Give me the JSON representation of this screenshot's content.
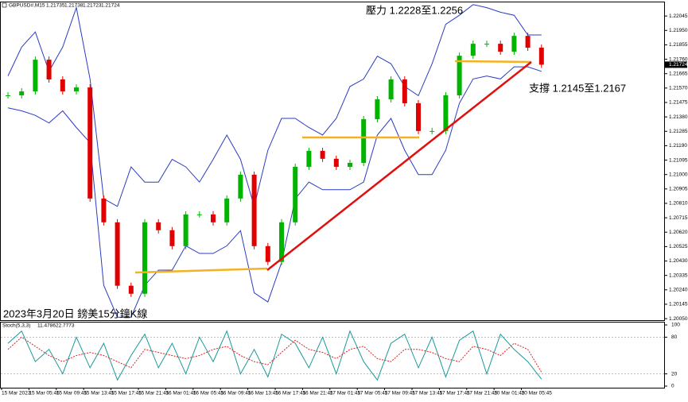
{
  "chart_data": {
    "type": "candlestick",
    "symbol": "GBPUSD#,M15",
    "ohlc": [
      1.21735,
      1.21738,
      1.21723,
      1.21724
    ],
    "annotations": [
      "壓力 1.2228至1.2256",
      "支撐 1.2145至1.2167",
      "2023年3月20日 鎊美15分鐘K線"
    ],
    "categories": [
      "15 Mar 2023",
      null,
      "15 Mar 05:45",
      null,
      "15 Mar 09:45",
      null,
      "15 Mar 13:45",
      null,
      "15 Mar 17:45",
      null,
      "15 Mar 21:45",
      null,
      "16 Mar 01:45",
      null,
      "16 Mar 05:45",
      null,
      "16 Mar 09:45",
      null,
      "16 Mar 13:45",
      null,
      "16 Mar 17:45",
      null,
      "16 Mar 21:45",
      null,
      "17 Mar 01:45",
      null,
      "17 Mar 05:45",
      null,
      "17 Mar 09:45",
      null,
      "17 Mar 13:45",
      null,
      "17 Mar 17:45",
      null,
      "17 Mar 21:45",
      null,
      "20 Mar 01:45",
      null,
      "20 Mar 05:45",
      null
    ],
    "values": [
      1.21522,
      1.21548,
      1.21757,
      1.21627,
      1.21548,
      1.21574,
      1.20842,
      1.20685,
      1.20267,
      1.20214,
      1.20685,
      1.20633,
      1.20528,
      1.20737,
      1.20737,
      1.20685,
      1.20842,
      1.20999,
      1.20528,
      1.20424,
      1.20685,
      1.21051,
      1.21156,
      1.21104,
      1.21051,
      1.21077,
      1.21365,
      1.21496,
      1.21627,
      1.2147,
      1.21287,
      1.21287,
      1.21522,
      1.21783,
      1.21862,
      1.21862,
      1.2181,
      1.21914,
      1.21836,
      1.21724
    ],
    "color_up": "#00b400",
    "color_down": "#e00000",
    "bands": {
      "color": "#2b3cc4",
      "upper": [
        1.2165,
        1.2184,
        1.2194,
        1.2168,
        1.2184,
        1.221,
        1.2163,
        1.2084,
        1.2079,
        1.2105,
        1.2095,
        1.2095,
        1.211,
        1.2105,
        1.2095,
        1.211,
        1.2126,
        1.211,
        1.2079,
        1.2116,
        1.2137,
        1.2137,
        1.2131,
        1.2126,
        1.2137,
        1.2158,
        1.2163,
        1.2178,
        1.2173,
        1.2158,
        1.2152,
        1.2173,
        1.2199,
        1.2205,
        1.2212,
        1.221,
        1.2207,
        1.2205,
        1.2192,
        1.2192
      ],
      "lower": [
        1.2144,
        1.2142,
        1.2139,
        1.2134,
        1.2142,
        1.2131,
        1.2121,
        1.2027,
        1.2006,
        1.2006,
        1.2027,
        1.2037,
        1.2037,
        1.2053,
        1.2048,
        1.2048,
        1.2053,
        1.2063,
        1.2022,
        1.2016,
        1.2042,
        1.2084,
        1.2095,
        1.209,
        1.209,
        1.209,
        1.2095,
        1.2126,
        1.2137,
        1.2116,
        1.21,
        1.21,
        1.2116,
        1.2147,
        1.2163,
        1.2165,
        1.2163,
        1.2171,
        1.2171,
        1.2168
      ]
    },
    "ylim": [
      1.2004,
      1.2214
    ],
    "yticks": [
      1.22045,
      {
        "value": 1.2195,
        "label": "1.21950"
      },
      1.21855,
      {
        "value": 1.2176,
        "label": "1.21760"
      },
      1.21665,
      {
        "value": 1.2157,
        "label": "1.21570"
      },
      1.21475,
      {
        "value": 1.2138,
        "label": "1.21380"
      },
      1.21285,
      {
        "value": 1.2119,
        "label": "1.21190"
      },
      1.21095,
      {
        "value": 1.21,
        "label": "1.21000"
      },
      1.20905,
      {
        "value": 1.2081,
        "label": "1.20810"
      },
      1.20715,
      {
        "value": 1.2062,
        "label": "1.20620"
      },
      1.20525,
      {
        "value": 1.2043,
        "label": "1.20430"
      },
      1.20335,
      {
        "value": 1.2024,
        "label": "1.20240"
      },
      1.20145,
      {
        "value": 1.2005,
        "label": "1.20050"
      }
    ],
    "stochastic": {
      "label": "Stoch(5,3,3)",
      "ylim": [
        0,
        100
      ],
      "yticks": [
        100,
        80,
        20,
        0
      ],
      "main_color": "#1a9a9a",
      "signal_color": "#e02020",
      "main": [
        70,
        90,
        40,
        60,
        20,
        80,
        30,
        70,
        10,
        50,
        85,
        30,
        70,
        20,
        80,
        40,
        90,
        20,
        60,
        15,
        85,
        70,
        30,
        80,
        20,
        90,
        40,
        10,
        70,
        85,
        30,
        80,
        15,
        75,
        90,
        20,
        85,
        60,
        40,
        11.4786
      ],
      "signal": [
        60,
        80,
        65,
        50,
        40,
        50,
        55,
        50,
        40,
        30,
        60,
        55,
        50,
        45,
        50,
        60,
        65,
        50,
        40,
        35,
        55,
        75,
        60,
        55,
        45,
        60,
        65,
        45,
        40,
        60,
        60,
        55,
        45,
        40,
        65,
        60,
        50,
        70,
        60,
        22.7773
      ]
    }
  }
}
